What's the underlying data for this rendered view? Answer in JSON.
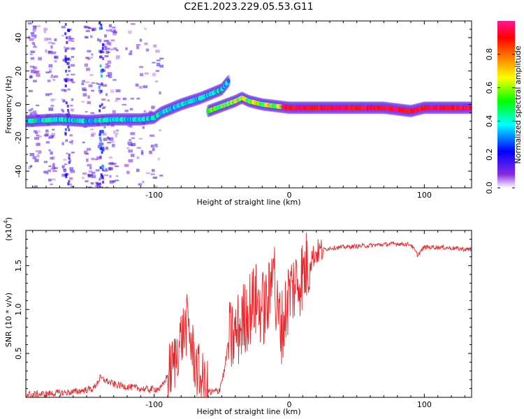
{
  "title": "C2E1.2023.229.05.53.G11",
  "chart_data": [
    {
      "type": "heatmap",
      "title": "C2E1.2023.229.05.53.G11",
      "xlabel": "Height of straight line (km)",
      "ylabel": "Frequency (Hz)",
      "xlim": [
        -195,
        135
      ],
      "ylim": [
        -50,
        50
      ],
      "xticks": [
        -100,
        0,
        100
      ],
      "yticks": [
        -40,
        -20,
        0,
        20,
        40
      ],
      "colorbar": {
        "label": "Normalized spectral amplitude",
        "range": [
          0,
          1
        ],
        "ticks": [
          "0.0",
          "0.2",
          "0.4",
          "0.6",
          "0.8"
        ],
        "colors": [
          "#ffffff",
          "#8a2be2",
          "#0000ff",
          "#00ffff",
          "#00ff00",
          "#ffff00",
          "#ff8000",
          "#ff0000",
          "#ff1493"
        ]
      },
      "ridges": [
        {
          "x": [
            -195,
            -170,
            -150,
            -130,
            -110,
            -100,
            -95,
            -80,
            -65,
            -50,
            -45
          ],
          "y": [
            -10,
            -9,
            -10,
            -9,
            -9,
            -8,
            -5,
            0,
            4,
            9,
            14
          ],
          "amplitude": 0.45
        },
        {
          "x": [
            -60,
            -50,
            -40,
            -35,
            -30,
            -20,
            -10,
            0,
            20,
            50,
            70,
            80,
            90,
            100,
            135
          ],
          "y": [
            -4,
            -1,
            2,
            4,
            2,
            0,
            -1,
            -2,
            -2,
            -2,
            -2,
            -3,
            -4,
            -2,
            -2
          ],
          "amplitude": 0.7
        }
      ]
    },
    {
      "type": "line",
      "xlabel": "Height of straight line (km)",
      "ylabel": "SNR (10 * v/v)",
      "yscale_label": "(x10",
      "yscale_exp": "4",
      "scale_factor": 10000,
      "xlim": [
        -195,
        135
      ],
      "ylim": [
        0,
        19000
      ],
      "xticks": [
        -100,
        0,
        100
      ],
      "yticks": [
        {
          "value": 5000,
          "label": "0.5"
        },
        {
          "value": 10000,
          "label": "1.0"
        },
        {
          "value": 15000,
          "label": "1.5"
        }
      ],
      "series": [
        {
          "color": "#e8262a",
          "x": [
            -195,
            -180,
            -160,
            -145,
            -140,
            -130,
            -120,
            -105,
            -95,
            -90,
            -85,
            -82,
            -78,
            -75,
            -72,
            -68,
            -62,
            -58,
            -52,
            -48,
            -45,
            -40,
            -35,
            -30,
            -25,
            -22,
            -18,
            -14,
            -12,
            -10,
            -5,
            0,
            5,
            10,
            15,
            20,
            25,
            30,
            40,
            50,
            60,
            70,
            80,
            90,
            95,
            100,
            110,
            120,
            135
          ],
          "y": [
            300,
            400,
            600,
            1000,
            2200,
            1500,
            1200,
            900,
            1000,
            2500,
            4000,
            6000,
            7500,
            8500,
            5500,
            3000,
            1000,
            500,
            800,
            3000,
            6500,
            7000,
            8500,
            10000,
            11000,
            10500,
            10000,
            11500,
            19000,
            10000,
            8000,
            12000,
            13000,
            14000,
            15500,
            16500,
            16800,
            17000,
            17100,
            17200,
            17300,
            17400,
            17500,
            17400,
            16200,
            17100,
            17100,
            17000,
            16800
          ]
        }
      ]
    }
  ]
}
